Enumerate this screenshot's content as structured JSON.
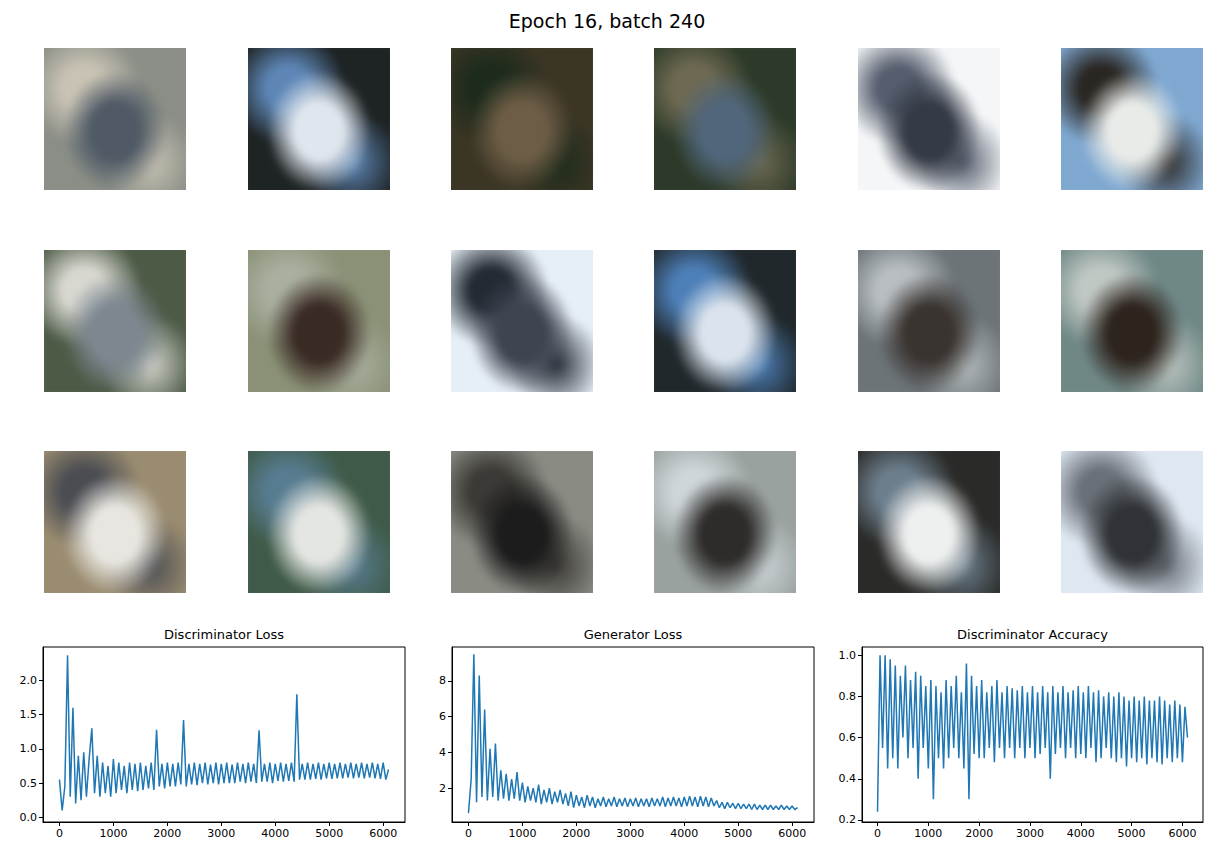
{
  "title": "Epoch 16, batch 240",
  "chart_data": [
    {
      "type": "line",
      "title": "Discriminator Loss",
      "color": "#1f77b4",
      "grid": false,
      "x": [
        0,
        50,
        100,
        150,
        200,
        250,
        300,
        350,
        400,
        450,
        500,
        550,
        600,
        650,
        700,
        750,
        800,
        850,
        900,
        950,
        1000,
        1050,
        1100,
        1150,
        1200,
        1250,
        1300,
        1350,
        1400,
        1450,
        1500,
        1550,
        1600,
        1650,
        1700,
        1750,
        1800,
        1850,
        1900,
        1950,
        2000,
        2050,
        2100,
        2150,
        2200,
        2250,
        2300,
        2350,
        2400,
        2450,
        2500,
        2550,
        2600,
        2650,
        2700,
        2750,
        2800,
        2850,
        2900,
        2950,
        3000,
        3050,
        3100,
        3150,
        3200,
        3250,
        3300,
        3350,
        3400,
        3450,
        3500,
        3550,
        3600,
        3650,
        3700,
        3750,
        3800,
        3850,
        3900,
        3950,
        4000,
        4050,
        4100,
        4150,
        4200,
        4250,
        4300,
        4350,
        4400,
        4450,
        4500,
        4550,
        4600,
        4650,
        4700,
        4750,
        4800,
        4850,
        4900,
        4950,
        5000,
        5050,
        5100,
        5150,
        5200,
        5250,
        5300,
        5350,
        5400,
        5450,
        5500,
        5550,
        5600,
        5650,
        5700,
        5750,
        5800,
        5850,
        5900,
        5950,
        6000,
        6050,
        6100
      ],
      "values": [
        0.55,
        0.1,
        0.45,
        2.37,
        0.3,
        1.6,
        0.2,
        0.9,
        0.25,
        0.95,
        0.3,
        0.85,
        1.3,
        0.35,
        0.9,
        0.3,
        0.8,
        0.35,
        0.75,
        0.3,
        0.85,
        0.35,
        0.8,
        0.4,
        0.75,
        0.35,
        0.8,
        0.4,
        0.78,
        0.38,
        0.8,
        0.4,
        0.75,
        0.42,
        0.8,
        0.4,
        1.28,
        0.45,
        0.78,
        0.42,
        0.8,
        0.45,
        0.78,
        0.45,
        0.8,
        0.48,
        1.42,
        0.45,
        0.78,
        0.48,
        0.8,
        0.47,
        0.78,
        0.5,
        0.8,
        0.48,
        0.77,
        0.5,
        0.8,
        0.48,
        0.78,
        0.5,
        0.8,
        0.5,
        0.77,
        0.5,
        0.8,
        0.52,
        0.78,
        0.5,
        0.8,
        0.52,
        0.78,
        0.5,
        1.27,
        0.52,
        0.78,
        0.52,
        0.8,
        0.5,
        0.78,
        0.53,
        0.8,
        0.52,
        0.78,
        0.53,
        0.8,
        0.52,
        1.8,
        0.55,
        0.78,
        0.55,
        0.8,
        0.55,
        0.78,
        0.56,
        0.8,
        0.55,
        0.78,
        0.57,
        0.8,
        0.56,
        0.78,
        0.57,
        0.8,
        0.57,
        0.78,
        0.58,
        0.8,
        0.57,
        0.78,
        0.58,
        0.8,
        0.57,
        0.78,
        0.58,
        0.8,
        0.57,
        0.78,
        0.56,
        0.8,
        0.55,
        0.7
      ],
      "xlim": [
        -305,
        6405
      ],
      "xticks": [
        0,
        1000,
        2000,
        3000,
        4000,
        5000,
        6000
      ],
      "ylim": [
        -0.07,
        2.49
      ],
      "yticks": [
        {
          "value": 0,
          "label": "0.0"
        },
        0.5,
        {
          "value": 1,
          "label": "1.0"
        },
        1.5,
        {
          "value": 2,
          "label": "2.0"
        }
      ]
    },
    {
      "type": "line",
      "title": "Generator Loss",
      "color": "#1f77b4",
      "grid": false,
      "x": [
        0,
        50,
        100,
        150,
        200,
        250,
        300,
        350,
        400,
        450,
        500,
        550,
        600,
        650,
        700,
        750,
        800,
        850,
        900,
        950,
        1000,
        1050,
        1100,
        1150,
        1200,
        1250,
        1300,
        1350,
        1400,
        1450,
        1500,
        1550,
        1600,
        1650,
        1700,
        1750,
        1800,
        1850,
        1900,
        1950,
        2000,
        2050,
        2100,
        2150,
        2200,
        2250,
        2300,
        2350,
        2400,
        2450,
        2500,
        2550,
        2600,
        2650,
        2700,
        2750,
        2800,
        2850,
        2900,
        2950,
        3000,
        3050,
        3100,
        3150,
        3200,
        3250,
        3300,
        3350,
        3400,
        3450,
        3500,
        3550,
        3600,
        3650,
        3700,
        3750,
        3800,
        3850,
        3900,
        3950,
        4000,
        4050,
        4100,
        4150,
        4200,
        4250,
        4300,
        4350,
        4400,
        4450,
        4500,
        4550,
        4600,
        4650,
        4700,
        4750,
        4800,
        4850,
        4900,
        4950,
        5000,
        5050,
        5100,
        5150,
        5200,
        5250,
        5300,
        5350,
        5400,
        5450,
        5500,
        5550,
        5600,
        5650,
        5700,
        5750,
        5800,
        5850,
        5900,
        5950,
        6000,
        6050,
        6100
      ],
      "values": [
        0.6,
        2.5,
        9.5,
        1.2,
        8.3,
        1.5,
        6.4,
        1.3,
        4.2,
        1.5,
        4.5,
        1.3,
        3.0,
        1.4,
        2.8,
        1.3,
        2.5,
        1.4,
        2.9,
        1.3,
        2.3,
        1.2,
        2.1,
        1.3,
        2.0,
        1.2,
        2.2,
        1.1,
        1.9,
        1.2,
        2.0,
        1.1,
        1.8,
        1.2,
        1.9,
        1.1,
        1.7,
        1.0,
        1.8,
        0.9,
        1.6,
        1.0,
        1.5,
        0.9,
        1.6,
        1.0,
        1.5,
        0.9,
        1.4,
        1.0,
        1.5,
        0.95,
        1.4,
        1.0,
        1.5,
        0.95,
        1.4,
        1.0,
        1.45,
        0.95,
        1.4,
        1.0,
        1.45,
        0.95,
        1.4,
        1.0,
        1.4,
        0.95,
        1.45,
        1.0,
        1.4,
        1.0,
        1.5,
        0.95,
        1.45,
        1.0,
        1.5,
        1.0,
        1.45,
        0.95,
        1.5,
        1.0,
        1.55,
        1.0,
        1.5,
        0.95,
        1.55,
        1.0,
        1.5,
        0.95,
        1.45,
        1.0,
        1.3,
        0.9,
        1.2,
        0.85,
        1.2,
        0.9,
        1.15,
        0.85,
        1.15,
        0.85,
        1.1,
        0.85,
        1.1,
        0.8,
        1.1,
        0.8,
        1.05,
        0.8,
        1.05,
        0.8,
        1.05,
        0.8,
        1.0,
        0.8,
        1.05,
        0.8,
        1.0,
        0.8,
        1.0,
        0.8,
        0.9
      ],
      "xlim": [
        -305,
        6405
      ],
      "xticks": [
        0,
        1000,
        2000,
        3000,
        4000,
        5000,
        6000
      ],
      "ylim": [
        0.1,
        9.9
      ],
      "yticks": [
        2,
        4,
        6,
        8
      ]
    },
    {
      "type": "line",
      "title": "Discriminator Accuracy",
      "color": "#1f77b4",
      "grid": false,
      "x": [
        0,
        50,
        100,
        150,
        200,
        250,
        300,
        350,
        400,
        450,
        500,
        550,
        600,
        650,
        700,
        750,
        800,
        850,
        900,
        950,
        1000,
        1050,
        1100,
        1150,
        1200,
        1250,
        1300,
        1350,
        1400,
        1450,
        1500,
        1550,
        1600,
        1650,
        1700,
        1750,
        1800,
        1850,
        1900,
        1950,
        2000,
        2050,
        2100,
        2150,
        2200,
        2250,
        2300,
        2350,
        2400,
        2450,
        2500,
        2550,
        2600,
        2650,
        2700,
        2750,
        2800,
        2850,
        2900,
        2950,
        3000,
        3050,
        3100,
        3150,
        3200,
        3250,
        3300,
        3350,
        3400,
        3450,
        3500,
        3550,
        3600,
        3650,
        3700,
        3750,
        3800,
        3850,
        3900,
        3950,
        4000,
        4050,
        4100,
        4150,
        4200,
        4250,
        4300,
        4350,
        4400,
        4450,
        4500,
        4550,
        4600,
        4650,
        4700,
        4750,
        4800,
        4850,
        4900,
        4950,
        5000,
        5050,
        5100,
        5150,
        5200,
        5250,
        5300,
        5350,
        5400,
        5450,
        5500,
        5550,
        5600,
        5650,
        5700,
        5750,
        5800,
        5850,
        5900,
        5950,
        6000,
        6050,
        6100
      ],
      "values": [
        0.24,
        1.0,
        0.55,
        1.0,
        0.45,
        0.98,
        0.5,
        0.95,
        0.45,
        0.9,
        0.6,
        0.95,
        0.5,
        0.88,
        0.55,
        0.92,
        0.4,
        0.9,
        0.55,
        0.85,
        0.45,
        0.88,
        0.3,
        0.85,
        0.5,
        0.82,
        0.45,
        0.88,
        0.5,
        0.85,
        0.55,
        0.9,
        0.5,
        0.82,
        0.45,
        0.96,
        0.3,
        0.9,
        0.52,
        0.85,
        0.5,
        0.88,
        0.5,
        0.82,
        0.55,
        0.85,
        0.48,
        0.88,
        0.55,
        0.82,
        0.5,
        0.85,
        0.55,
        0.84,
        0.5,
        0.83,
        0.55,
        0.85,
        0.5,
        0.82,
        0.55,
        0.85,
        0.5,
        0.82,
        0.52,
        0.85,
        0.55,
        0.82,
        0.4,
        0.85,
        0.52,
        0.82,
        0.55,
        0.85,
        0.5,
        0.82,
        0.55,
        0.83,
        0.5,
        0.85,
        0.52,
        0.82,
        0.5,
        0.85,
        0.55,
        0.82,
        0.48,
        0.83,
        0.5,
        0.8,
        0.55,
        0.82,
        0.5,
        0.8,
        0.48,
        0.82,
        0.5,
        0.8,
        0.46,
        0.78,
        0.5,
        0.8,
        0.48,
        0.78,
        0.5,
        0.8,
        0.47,
        0.78,
        0.5,
        0.78,
        0.48,
        0.8,
        0.47,
        0.78,
        0.5,
        0.76,
        0.48,
        0.78,
        0.5,
        0.76,
        0.48,
        0.75,
        0.6
      ],
      "xlim": [
        -305,
        6405
      ],
      "xticks": [
        0,
        1000,
        2000,
        3000,
        4000,
        5000,
        6000
      ],
      "ylim": [
        0.19,
        1.04
      ],
      "yticks": [
        0.2,
        0.4,
        0.6,
        0.8,
        {
          "value": 1,
          "label": "1.0"
        }
      ]
    }
  ]
}
